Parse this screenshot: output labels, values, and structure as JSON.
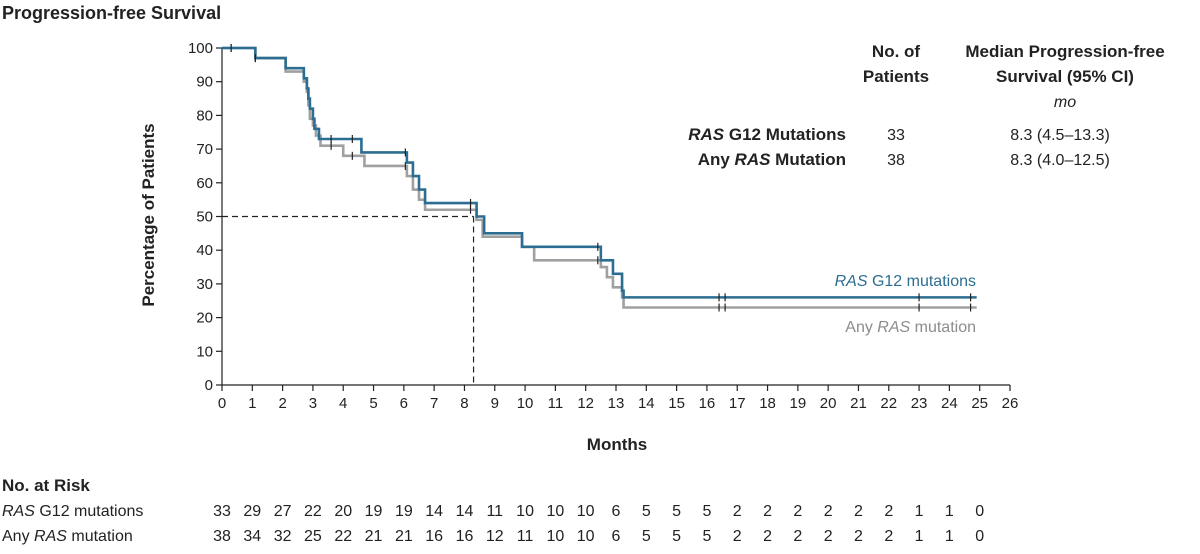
{
  "chart_data": {
    "type": "line",
    "title": "Progression-free Survival",
    "xlabel": "Months",
    "ylabel": "Percentage of Patients",
    "xlim": [
      0,
      26
    ],
    "ylim": [
      0,
      100
    ],
    "x_ticks": [
      0,
      1,
      2,
      3,
      4,
      5,
      6,
      7,
      8,
      9,
      10,
      11,
      12,
      13,
      14,
      15,
      16,
      17,
      18,
      19,
      20,
      21,
      22,
      23,
      24,
      25,
      26
    ],
    "y_ticks": [
      0,
      10,
      20,
      30,
      40,
      50,
      60,
      70,
      80,
      90,
      100
    ],
    "grid": false,
    "series": [
      {
        "name": "RAS G12 mutations",
        "name_ital": "RAS",
        "name_rest": " G12 mutations",
        "color": "#2c6e91",
        "steps": [
          [
            0,
            100
          ],
          [
            1.1,
            97
          ],
          [
            2.1,
            94
          ],
          [
            2.7,
            91
          ],
          [
            2.8,
            88
          ],
          [
            2.85,
            85
          ],
          [
            2.9,
            82
          ],
          [
            3.0,
            79
          ],
          [
            3.05,
            76
          ],
          [
            3.2,
            73
          ],
          [
            4.6,
            69
          ],
          [
            6.1,
            66
          ],
          [
            6.3,
            62
          ],
          [
            6.5,
            58
          ],
          [
            6.7,
            54
          ],
          [
            8.4,
            50
          ],
          [
            8.65,
            45
          ],
          [
            9.9,
            41
          ],
          [
            12.5,
            37
          ],
          [
            12.9,
            33
          ],
          [
            13.2,
            28
          ],
          [
            13.25,
            26
          ],
          [
            24.9,
            26
          ]
        ],
        "censor_x": [
          0.3,
          1.1,
          3.6,
          4.3,
          6.05,
          8.2,
          12.4,
          16.4,
          16.6,
          23.0,
          24.7
        ]
      },
      {
        "name": "Any RAS mutation",
        "name_ital": "RAS",
        "name_pre": "Any ",
        "name_rest": " mutation",
        "color": "#a0a0a0",
        "steps": [
          [
            0,
            100
          ],
          [
            1.1,
            97
          ],
          [
            2.1,
            93
          ],
          [
            2.7,
            90
          ],
          [
            2.8,
            87
          ],
          [
            2.85,
            83
          ],
          [
            2.9,
            79
          ],
          [
            3.0,
            77
          ],
          [
            3.1,
            74
          ],
          [
            3.25,
            71
          ],
          [
            4.0,
            68
          ],
          [
            4.7,
            65
          ],
          [
            6.1,
            62
          ],
          [
            6.3,
            58
          ],
          [
            6.5,
            55
          ],
          [
            6.7,
            52
          ],
          [
            8.4,
            49
          ],
          [
            8.6,
            44
          ],
          [
            9.9,
            41
          ],
          [
            10.3,
            37
          ],
          [
            12.5,
            35
          ],
          [
            12.7,
            32
          ],
          [
            12.9,
            29
          ],
          [
            13.2,
            26
          ],
          [
            13.25,
            23
          ],
          [
            24.9,
            23
          ]
        ],
        "censor_x": [
          0.3,
          1.1,
          3.6,
          4.3,
          6.05,
          8.2,
          12.4,
          16.4,
          16.6,
          23.0,
          24.7
        ]
      }
    ],
    "median_line": {
      "x": 8.3,
      "y": 50
    },
    "legend_placement": "right"
  },
  "summary_table": {
    "header_patients_1": "No. of",
    "header_patients_2": "Patients",
    "header_median_1": "Median Progression-free",
    "header_median_2": "Survival (95% CI)",
    "header_units": "mo",
    "rows": [
      {
        "label_ital": "RAS",
        "label_pre": "",
        "label_rest": " G12 Mutations",
        "patients": "33",
        "median": "8.3 (4.5–13.3)"
      },
      {
        "label_ital": "RAS",
        "label_pre": "Any ",
        "label_rest": " Mutation",
        "patients": "38",
        "median": "8.3 (4.0–12.5)"
      }
    ]
  },
  "at_risk": {
    "title": "No. at Risk",
    "rows": [
      {
        "label_ital": "RAS",
        "label_pre": "",
        "label_rest": " G12 mutations",
        "values": [
          33,
          29,
          27,
          22,
          20,
          19,
          19,
          14,
          14,
          11,
          10,
          10,
          10,
          6,
          5,
          5,
          5,
          2,
          2,
          2,
          2,
          2,
          2,
          1,
          1,
          0
        ]
      },
      {
        "label_ital": "RAS",
        "label_pre": "Any ",
        "label_rest": " mutation",
        "values": [
          38,
          34,
          32,
          25,
          22,
          21,
          21,
          16,
          16,
          12,
          11,
          10,
          10,
          6,
          5,
          5,
          5,
          2,
          2,
          2,
          2,
          2,
          2,
          1,
          1,
          0
        ]
      }
    ]
  }
}
